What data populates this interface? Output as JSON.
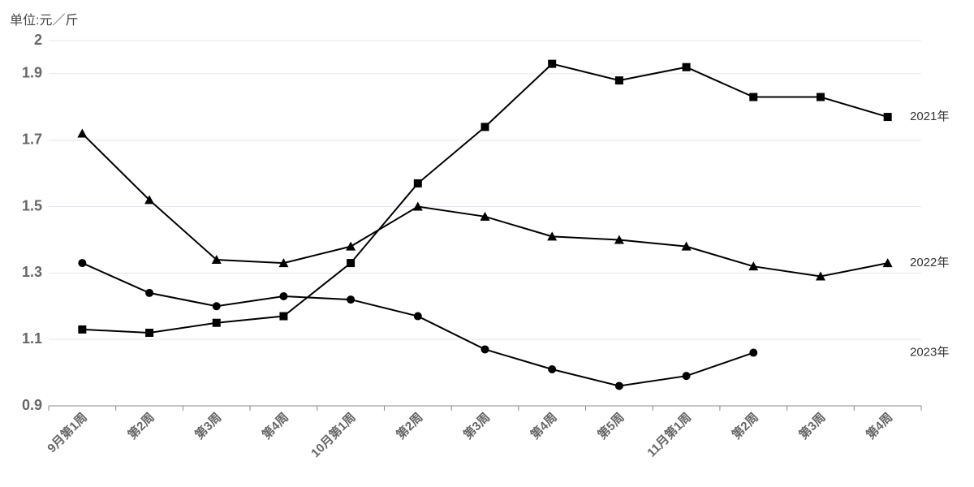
{
  "chart_data": {
    "type": "line",
    "y_label": "单位:元／斤",
    "categories": [
      "9月第1周",
      "第2周",
      "第3周",
      "第4周",
      "10月第1周",
      "第2周",
      "第3周",
      "第4周",
      "第5周",
      "11月第1周",
      "第2周",
      "第3周",
      "第4周"
    ],
    "series": [
      {
        "name": "2021年",
        "color": "#000000",
        "marker": "square",
        "values": [
          1.13,
          1.12,
          1.15,
          1.17,
          1.33,
          1.57,
          1.74,
          1.93,
          1.88,
          1.92,
          1.83,
          1.83,
          1.77
        ]
      },
      {
        "name": "2022年",
        "color": "#000000",
        "marker": "triangle",
        "values": [
          1.72,
          1.52,
          1.34,
          1.33,
          1.38,
          1.5,
          1.47,
          1.41,
          1.4,
          1.38,
          1.32,
          1.29,
          1.33
        ]
      },
      {
        "name": "2023年",
        "color": "#000000",
        "marker": "circle",
        "values": [
          1.33,
          1.24,
          1.2,
          1.23,
          1.22,
          1.17,
          1.07,
          1.01,
          0.96,
          0.99,
          1.06,
          null,
          null
        ]
      }
    ],
    "ylim": [
      0.9,
      2
    ],
    "yticks": [
      0.9,
      1.1,
      1.3,
      1.5,
      1.7,
      1.9,
      2
    ],
    "grid": true
  }
}
